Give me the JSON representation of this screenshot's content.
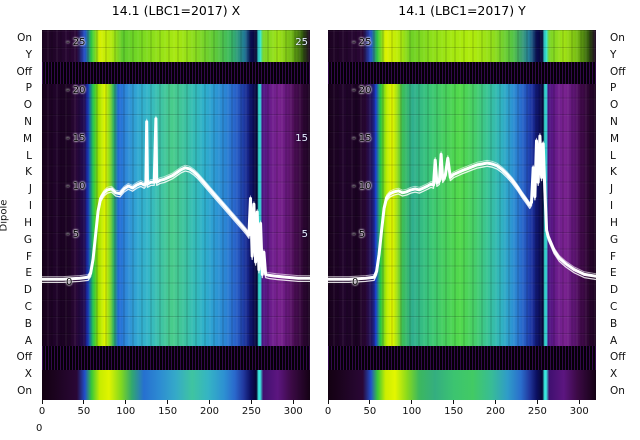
{
  "figure": {
    "left_axis_label": "Dipole",
    "row_labels": [
      "On",
      "Y",
      "Off",
      "P",
      "O",
      "N",
      "M",
      "L",
      "K",
      "J",
      "I",
      "H",
      "G",
      "F",
      "E",
      "D",
      "C",
      "B",
      "A",
      "Off",
      "X",
      "On"
    ],
    "stray_label": "0",
    "colors": {
      "off_band": "#060009",
      "off_band_stripe": "#32084a",
      "line": "#ffffff",
      "background": "#ffffff",
      "text": "#111111"
    }
  },
  "chart_data": [
    {
      "type": "heatmap",
      "title": "14.1 (LBC1=2017) X",
      "x_ticks": [
        0,
        50,
        100,
        150,
        200,
        250,
        300
      ],
      "x_range": [
        0,
        320
      ],
      "value_range": [
        0,
        25
      ],
      "value_ticks": [
        {
          "v": 25,
          "label": "- 25"
        },
        {
          "v": 20,
          "label": "- 20"
        },
        {
          "v": 15,
          "label": "- 15"
        },
        {
          "v": 10,
          "label": "- 10"
        },
        {
          "v": 5,
          "label": "- 5"
        },
        {
          "v": 0,
          "label": "0"
        }
      ],
      "right_value_ticks": [
        {
          "v": 25,
          "label": "25"
        },
        {
          "v": 15,
          "label": "15"
        },
        {
          "v": 5,
          "label": "5"
        }
      ],
      "gradients": {
        "main": [
          [
            0.0,
            "#17011b"
          ],
          [
            0.05,
            "#20032a"
          ],
          [
            0.09,
            "#190220"
          ],
          [
            0.125,
            "#2a0736"
          ],
          [
            0.16,
            "#1d0a55"
          ],
          [
            0.172,
            "#1c40d0"
          ],
          [
            0.19,
            "#1cc24a"
          ],
          [
            0.212,
            "#a6e400"
          ],
          [
            0.235,
            "#e0f400"
          ],
          [
            0.252,
            "#8edc1e"
          ],
          [
            0.268,
            "#2fae66"
          ],
          [
            0.285,
            "#2168d6"
          ],
          [
            0.315,
            "#2f8ad8"
          ],
          [
            0.355,
            "#31a8d2"
          ],
          [
            0.4,
            "#35b8c6"
          ],
          [
            0.445,
            "#3fc4a4"
          ],
          [
            0.485,
            "#49cc8a"
          ],
          [
            0.525,
            "#3fc49c"
          ],
          [
            0.565,
            "#35bdb6"
          ],
          [
            0.605,
            "#2fb0cc"
          ],
          [
            0.645,
            "#2d9ad4"
          ],
          [
            0.685,
            "#2b84d4"
          ],
          [
            0.715,
            "#2a6ace"
          ],
          [
            0.74,
            "#234eb8"
          ],
          [
            0.76,
            "#1b3198"
          ],
          [
            0.778,
            "#111774"
          ],
          [
            0.79,
            "#090b4e"
          ],
          [
            0.803,
            "#060732"
          ],
          [
            0.808,
            "#3ae8e0"
          ],
          [
            0.814,
            "#3ae8e0"
          ],
          [
            0.822,
            "#4a1280"
          ],
          [
            0.855,
            "#6d1d8c"
          ],
          [
            0.885,
            "#7a2290"
          ],
          [
            0.91,
            "#69197f"
          ],
          [
            0.935,
            "#52105e"
          ],
          [
            0.965,
            "#36083d"
          ],
          [
            1.0,
            "#1b0320"
          ]
        ],
        "top": [
          [
            0.0,
            "#1c0322"
          ],
          [
            0.13,
            "#2a0736"
          ],
          [
            0.16,
            "#2150cc"
          ],
          [
            0.185,
            "#30c840"
          ],
          [
            0.215,
            "#d6f000"
          ],
          [
            0.26,
            "#b2e80e"
          ],
          [
            0.3,
            "#5ecc2e"
          ],
          [
            0.36,
            "#74d822"
          ],
          [
            0.43,
            "#92e018"
          ],
          [
            0.5,
            "#a8e810"
          ],
          [
            0.57,
            "#8adc1e"
          ],
          [
            0.64,
            "#62cc36"
          ],
          [
            0.705,
            "#3ab864"
          ],
          [
            0.755,
            "#217a96"
          ],
          [
            0.78,
            "#0a0c52"
          ],
          [
            0.8,
            "#060732"
          ],
          [
            0.808,
            "#3ae8e0"
          ],
          [
            0.814,
            "#3ae8e0"
          ],
          [
            0.825,
            "#78d428"
          ],
          [
            0.88,
            "#9ee416"
          ],
          [
            0.93,
            "#72ba16"
          ],
          [
            0.97,
            "#35600e"
          ],
          [
            1.0,
            "#1c0322"
          ]
        ],
        "bottom": [
          [
            0.0,
            "#130111"
          ],
          [
            0.13,
            "#2a0736"
          ],
          [
            0.16,
            "#2150cc"
          ],
          [
            0.185,
            "#38c838"
          ],
          [
            0.215,
            "#c6ec00"
          ],
          [
            0.25,
            "#e0f400"
          ],
          [
            0.295,
            "#82d81e"
          ],
          [
            0.335,
            "#32a86e"
          ],
          [
            0.38,
            "#2670d0"
          ],
          [
            0.44,
            "#2d8cd2"
          ],
          [
            0.5,
            "#35aac8"
          ],
          [
            0.56,
            "#3fc4a0"
          ],
          [
            0.62,
            "#35b4c4"
          ],
          [
            0.68,
            "#2d90d2"
          ],
          [
            0.72,
            "#2a68cc"
          ],
          [
            0.752,
            "#21389e"
          ],
          [
            0.778,
            "#0c1062"
          ],
          [
            0.8,
            "#060732"
          ],
          [
            0.808,
            "#3ae8e0"
          ],
          [
            0.814,
            "#3ae8e0"
          ],
          [
            0.825,
            "#401070"
          ],
          [
            0.88,
            "#5c1680"
          ],
          [
            0.93,
            "#3c0a46"
          ],
          [
            1.0,
            "#140114"
          ]
        ]
      },
      "line": [
        [
          0,
          0.4
        ],
        [
          25,
          0.4
        ],
        [
          45,
          0.5
        ],
        [
          55,
          0.6
        ],
        [
          58,
          1.0
        ],
        [
          61,
          2.5
        ],
        [
          64,
          5.0
        ],
        [
          67,
          7.5
        ],
        [
          70,
          8.8
        ],
        [
          74,
          9.4
        ],
        [
          78,
          9.7
        ],
        [
          83,
          9.8
        ],
        [
          88,
          9.4
        ],
        [
          93,
          9.3
        ],
        [
          98,
          9.8
        ],
        [
          103,
          10.1
        ],
        [
          108,
          9.9
        ],
        [
          113,
          10.2
        ],
        [
          118,
          10.4
        ],
        [
          122,
          10.2
        ],
        [
          124,
          10.4
        ],
        [
          125,
          16.8
        ],
        [
          126,
          10.3
        ],
        [
          130,
          10.5
        ],
        [
          134,
          10.5
        ],
        [
          136,
          17.1
        ],
        [
          137,
          10.5
        ],
        [
          141,
          10.7
        ],
        [
          146,
          10.8
        ],
        [
          151,
          11.0
        ],
        [
          156,
          11.2
        ],
        [
          161,
          11.5
        ],
        [
          166,
          11.8
        ],
        [
          171,
          12.0
        ],
        [
          176,
          11.9
        ],
        [
          181,
          11.6
        ],
        [
          186,
          11.2
        ],
        [
          191,
          10.7
        ],
        [
          196,
          10.2
        ],
        [
          201,
          9.7
        ],
        [
          206,
          9.2
        ],
        [
          211,
          8.7
        ],
        [
          216,
          8.2
        ],
        [
          221,
          7.7
        ],
        [
          226,
          7.2
        ],
        [
          231,
          6.7
        ],
        [
          236,
          6.2
        ],
        [
          240,
          5.8
        ],
        [
          244,
          5.4
        ],
        [
          247,
          5.0
        ],
        [
          249,
          8.8
        ],
        [
          251,
          2.8
        ],
        [
          253,
          8.2
        ],
        [
          255,
          2.2
        ],
        [
          257,
          7.4
        ],
        [
          259,
          1.4
        ],
        [
          261,
          6.2
        ],
        [
          263,
          0.9
        ],
        [
          265,
          3.2
        ],
        [
          267,
          0.9
        ],
        [
          271,
          0.8
        ],
        [
          280,
          0.7
        ],
        [
          292,
          0.6
        ],
        [
          306,
          0.5
        ],
        [
          320,
          0.5
        ]
      ]
    },
    {
      "type": "heatmap",
      "title": "14.1 (LBC1=2017) Y",
      "x_ticks": [
        0,
        50,
        100,
        150,
        200,
        250,
        300
      ],
      "x_range": [
        0,
        320
      ],
      "value_range": [
        0,
        25
      ],
      "value_ticks": [
        {
          "v": 25,
          "label": "- 25"
        },
        {
          "v": 20,
          "label": "- 20"
        },
        {
          "v": 15,
          "label": "- 15"
        },
        {
          "v": 10,
          "label": "- 10"
        },
        {
          "v": 5,
          "label": "- 5"
        },
        {
          "v": 0,
          "label": "0"
        }
      ],
      "gradients": {
        "main": [
          [
            0.0,
            "#17011b"
          ],
          [
            0.06,
            "#21042c"
          ],
          [
            0.11,
            "#1a0221"
          ],
          [
            0.14,
            "#2a0736"
          ],
          [
            0.165,
            "#201668"
          ],
          [
            0.178,
            "#1c40d0"
          ],
          [
            0.195,
            "#21c24a"
          ],
          [
            0.218,
            "#b6ea00"
          ],
          [
            0.24,
            "#e6f800"
          ],
          [
            0.258,
            "#9edf14"
          ],
          [
            0.278,
            "#3cbf58"
          ],
          [
            0.315,
            "#2fae8e"
          ],
          [
            0.37,
            "#38c47c"
          ],
          [
            0.43,
            "#46cf60"
          ],
          [
            0.49,
            "#52d94a"
          ],
          [
            0.545,
            "#47cf68"
          ],
          [
            0.595,
            "#39c496"
          ],
          [
            0.645,
            "#31b4c0"
          ],
          [
            0.685,
            "#2d96d2"
          ],
          [
            0.715,
            "#2a74d0"
          ],
          [
            0.742,
            "#2450bc"
          ],
          [
            0.763,
            "#1b2f9c"
          ],
          [
            0.78,
            "#101670"
          ],
          [
            0.792,
            "#090b4e"
          ],
          [
            0.803,
            "#060732"
          ],
          [
            0.808,
            "#3ae8e0"
          ],
          [
            0.814,
            "#3ae8e0"
          ],
          [
            0.822,
            "#4a1280"
          ],
          [
            0.855,
            "#6d1d8c"
          ],
          [
            0.885,
            "#7a2290"
          ],
          [
            0.912,
            "#62177a"
          ],
          [
            0.94,
            "#470b52"
          ],
          [
            0.968,
            "#2e0634"
          ],
          [
            1.0,
            "#1b0320"
          ]
        ],
        "top": [
          [
            0.0,
            "#1c0322"
          ],
          [
            0.13,
            "#2a0736"
          ],
          [
            0.16,
            "#2150cc"
          ],
          [
            0.185,
            "#34c83c"
          ],
          [
            0.215,
            "#dcf200"
          ],
          [
            0.26,
            "#bcec08"
          ],
          [
            0.31,
            "#6ed026"
          ],
          [
            0.38,
            "#8ade1a"
          ],
          [
            0.46,
            "#a4e810"
          ],
          [
            0.54,
            "#b0ec0c"
          ],
          [
            0.62,
            "#8edc1c"
          ],
          [
            0.69,
            "#54c444"
          ],
          [
            0.75,
            "#26809a"
          ],
          [
            0.78,
            "#0a0c52"
          ],
          [
            0.8,
            "#060732"
          ],
          [
            0.808,
            "#3ae8e0"
          ],
          [
            0.814,
            "#3ae8e0"
          ],
          [
            0.825,
            "#78d428"
          ],
          [
            0.88,
            "#a2e414"
          ],
          [
            0.93,
            "#76bc14"
          ],
          [
            0.97,
            "#35600e"
          ],
          [
            1.0,
            "#1c0322"
          ]
        ],
        "bottom": [
          [
            0.0,
            "#130111"
          ],
          [
            0.13,
            "#2a0736"
          ],
          [
            0.16,
            "#2150cc"
          ],
          [
            0.185,
            "#3cc836"
          ],
          [
            0.215,
            "#ccee00"
          ],
          [
            0.25,
            "#e4f600"
          ],
          [
            0.295,
            "#8ada1c"
          ],
          [
            0.34,
            "#3cb85e"
          ],
          [
            0.4,
            "#34ae80"
          ],
          [
            0.47,
            "#3cc470"
          ],
          [
            0.54,
            "#42ca64"
          ],
          [
            0.61,
            "#38bc96"
          ],
          [
            0.67,
            "#2f9cc8"
          ],
          [
            0.72,
            "#2a6ecc"
          ],
          [
            0.752,
            "#21389e"
          ],
          [
            0.778,
            "#0c1062"
          ],
          [
            0.8,
            "#060732"
          ],
          [
            0.808,
            "#3ae8e0"
          ],
          [
            0.814,
            "#3ae8e0"
          ],
          [
            0.825,
            "#401070"
          ],
          [
            0.88,
            "#5c1680"
          ],
          [
            0.93,
            "#3c0a46"
          ],
          [
            1.0,
            "#140114"
          ]
        ]
      },
      "line": [
        [
          0,
          0.4
        ],
        [
          25,
          0.4
        ],
        [
          45,
          0.5
        ],
        [
          55,
          0.6
        ],
        [
          58,
          1.2
        ],
        [
          61,
          3.0
        ],
        [
          64,
          5.5
        ],
        [
          67,
          7.8
        ],
        [
          70,
          8.9
        ],
        [
          74,
          9.3
        ],
        [
          79,
          9.5
        ],
        [
          84,
          9.6
        ],
        [
          89,
          9.4
        ],
        [
          94,
          9.5
        ],
        [
          99,
          9.7
        ],
        [
          104,
          9.8
        ],
        [
          109,
          9.7
        ],
        [
          114,
          9.9
        ],
        [
          119,
          10.1
        ],
        [
          123,
          10.3
        ],
        [
          126,
          10.2
        ],
        [
          128,
          12.8
        ],
        [
          130,
          10.4
        ],
        [
          133,
          10.6
        ],
        [
          135,
          13.4
        ],
        [
          137,
          10.8
        ],
        [
          140,
          11.2
        ],
        [
          143,
          13.0
        ],
        [
          146,
          11.0
        ],
        [
          150,
          11.3
        ],
        [
          155,
          11.5
        ],
        [
          160,
          11.7
        ],
        [
          166,
          11.9
        ],
        [
          172,
          12.1
        ],
        [
          178,
          12.3
        ],
        [
          184,
          12.4
        ],
        [
          190,
          12.5
        ],
        [
          196,
          12.4
        ],
        [
          202,
          12.2
        ],
        [
          208,
          11.8
        ],
        [
          214,
          11.3
        ],
        [
          220,
          10.7
        ],
        [
          226,
          10.0
        ],
        [
          232,
          9.2
        ],
        [
          237,
          8.6
        ],
        [
          241,
          8.1
        ],
        [
          243,
          8.4
        ],
        [
          245,
          12.0
        ],
        [
          247,
          9.0
        ],
        [
          249,
          14.8
        ],
        [
          251,
          10.5
        ],
        [
          253,
          15.3
        ],
        [
          255,
          11.0
        ],
        [
          257,
          14.5
        ],
        [
          259,
          9.5
        ],
        [
          261,
          5.5
        ],
        [
          263,
          4.8
        ],
        [
          266,
          4.2
        ],
        [
          270,
          3.4
        ],
        [
          276,
          2.6
        ],
        [
          284,
          2.0
        ],
        [
          294,
          1.4
        ],
        [
          306,
          0.9
        ],
        [
          320,
          0.7
        ]
      ]
    }
  ]
}
